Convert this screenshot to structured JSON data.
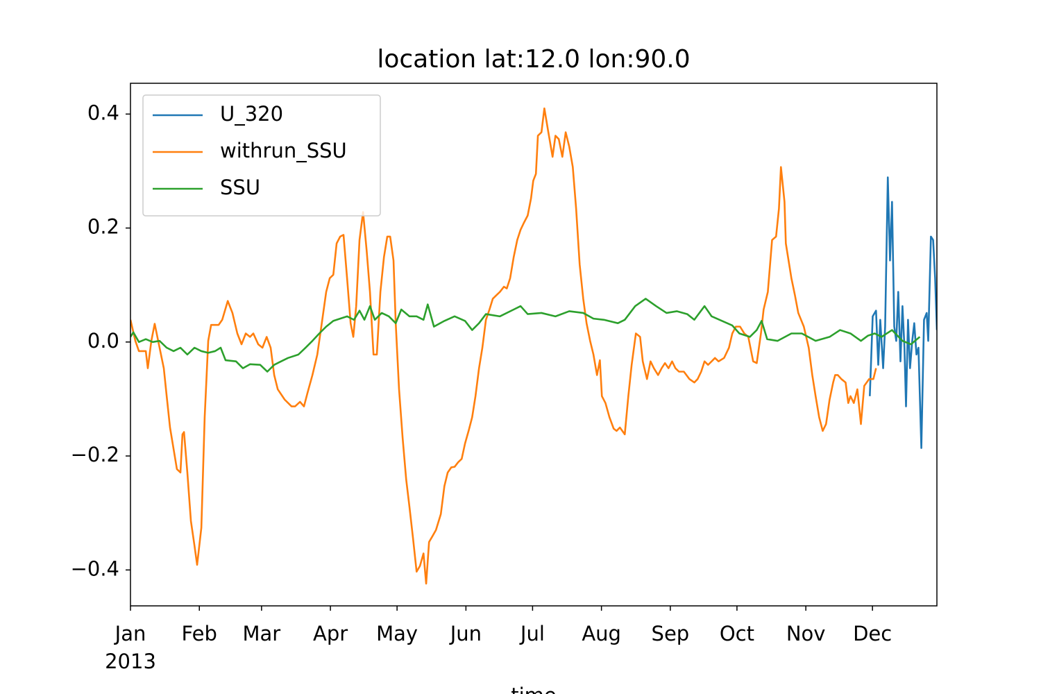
{
  "chart_data": {
    "type": "line",
    "title": "location lat:12.0 lon:90.0",
    "xlabel": "time",
    "year_label": "2013",
    "xlim": [
      0,
      363
    ],
    "xticks": [
      {
        "value": 0,
        "label": "Jan"
      },
      {
        "value": 31,
        "label": "Feb"
      },
      {
        "value": 59,
        "label": "Mar"
      },
      {
        "value": 90,
        "label": "Apr"
      },
      {
        "value": 120,
        "label": "May"
      },
      {
        "value": 151,
        "label": "Jun"
      },
      {
        "value": 181,
        "label": "Jul"
      },
      {
        "value": 212,
        "label": "Aug"
      },
      {
        "value": 243,
        "label": "Sep"
      },
      {
        "value": 273,
        "label": "Oct"
      },
      {
        "value": 304,
        "label": "Nov"
      },
      {
        "value": 334,
        "label": "Dec"
      }
    ],
    "ylim": [
      -0.463,
      0.454
    ],
    "yticks": [
      {
        "value": -0.4,
        "label": "−0.4"
      },
      {
        "value": -0.2,
        "label": "−0.2"
      },
      {
        "value": 0,
        "label": "0.0"
      },
      0.2,
      0.4
    ],
    "grid": false,
    "legend": "upper left",
    "series": [
      {
        "name": "U_320",
        "color": "#1f77b4",
        "x": [
          332.8,
          334.1,
          335.6,
          336.6,
          337.5,
          338.8,
          339.7,
          340.9,
          341.9,
          342.8,
          343.8,
          344.7,
          345.6,
          346.6,
          347.5,
          348.4,
          349.1,
          350,
          350.9,
          351.9,
          352.8,
          353.8,
          354.7,
          356,
          357.2,
          358.4,
          359.1,
          360.3,
          361.3,
          362.2,
          363
        ],
        "values": [
          -0.095,
          0.045,
          0.055,
          -0.04,
          0.039,
          -0.046,
          0.027,
          0.289,
          0.143,
          0.246,
          0.027,
          0.002,
          0.088,
          -0.034,
          0.063,
          -0.01,
          -0.113,
          0.039,
          -0.046,
          0.002,
          0.033,
          -0.022,
          -0.01,
          -0.186,
          0.039,
          0.051,
          0.002,
          0.185,
          0.179,
          0.112,
          0.021
        ]
      },
      {
        "name": "withrun_SSU",
        "color": "#ff7f0e",
        "x": [
          0,
          2.2,
          3.8,
          6.9,
          7.8,
          9.4,
          10.9,
          13.1,
          15,
          16.3,
          17.8,
          20.9,
          22.5,
          23.4,
          24.1,
          25.6,
          27.2,
          28.8,
          30,
          31.9,
          33.4,
          35,
          36.3,
          38.1,
          39.7,
          41.3,
          43.8,
          45.9,
          48.1,
          50,
          51.9,
          53.8,
          55.3,
          57.5,
          59.4,
          61.3,
          63.1,
          64.7,
          66.3,
          69.4,
          72.5,
          74.1,
          76.3,
          78.1,
          79.7,
          81.9,
          84.1,
          85.9,
          88.1,
          89.7,
          91.3,
          92.8,
          94.4,
          95.9,
          97.5,
          99.1,
          100.3,
          101.6,
          103.1,
          104.7,
          106.3,
          107.8,
          109.4,
          110.9,
          112.5,
          114.1,
          115.6,
          116.9,
          118.4,
          119.4,
          120.9,
          122.5,
          124.1,
          125.6,
          127.2,
          128.8,
          130.3,
          131.9,
          133.1,
          134.4,
          135.9,
          137.5,
          139.7,
          141.3,
          142.8,
          144.4,
          145.9,
          147.5,
          149.1,
          150.6,
          152.2,
          153.8,
          155.3,
          156.9,
          158.4,
          160,
          161.6,
          163.1,
          164.7,
          166.3,
          168.1,
          169.4,
          170.9,
          172.5,
          174.1,
          175.6,
          177.2,
          178.8,
          180.3,
          181.3,
          182.5,
          183.4,
          185,
          186.3,
          188.1,
          190,
          191.3,
          192.8,
          194.4,
          195.9,
          197.5,
          199.1,
          200.6,
          202.2,
          203.8,
          205.3,
          206.9,
          208.4,
          210,
          211.3,
          212.2,
          213.8,
          215.6,
          217.5,
          218.8,
          220.3,
          222.5,
          224.1,
          225.6,
          227.5,
          229.4,
          230.6,
          232.5,
          234.1,
          235.6,
          237.5,
          239.1,
          240.6,
          242.2,
          243.8,
          245.3,
          246.9,
          249.1,
          251.6,
          253.8,
          255.3,
          256.9,
          258.4,
          260,
          261.6,
          263.1,
          264.7,
          267.2,
          269.4,
          270.9,
          272.5,
          274.4,
          276.3,
          278.1,
          280.3,
          281.9,
          283.8,
          285,
          286.9,
          288.8,
          290.6,
          291.9,
          292.8,
          294.4,
          295,
          297.5,
          299.1,
          300.6,
          303.1,
          305.3,
          306.9,
          308.4,
          310,
          311.6,
          313.1,
          314.7,
          316.3,
          317.2,
          318.4,
          320,
          321.9,
          323.1,
          324.1,
          325.6,
          327.2,
          328.8,
          330.3,
          332.5,
          334.4,
          335.6
        ],
        "values": [
          0.039,
          0.002,
          -0.016,
          -0.016,
          -0.046,
          0.002,
          0.032,
          -0.01,
          -0.046,
          -0.095,
          -0.15,
          -0.223,
          -0.229,
          -0.162,
          -0.158,
          -0.229,
          -0.314,
          -0.357,
          -0.391,
          -0.326,
          -0.132,
          0.002,
          0.03,
          0.03,
          0.03,
          0.039,
          0.072,
          0.051,
          0.015,
          -0.004,
          0.015,
          0.009,
          0.015,
          -0.004,
          -0.01,
          0.009,
          -0.01,
          -0.058,
          -0.083,
          -0.101,
          -0.113,
          -0.113,
          -0.105,
          -0.113,
          -0.089,
          -0.058,
          -0.022,
          0.027,
          0.088,
          0.112,
          0.118,
          0.173,
          0.185,
          0.188,
          0.112,
          0.033,
          0.009,
          0.063,
          0.179,
          0.228,
          0.161,
          0.088,
          -0.022,
          -0.022,
          0.088,
          0.149,
          0.185,
          0.185,
          0.143,
          0.033,
          -0.083,
          -0.168,
          -0.241,
          -0.29,
          -0.345,
          -0.403,
          -0.393,
          -0.371,
          -0.424,
          -0.351,
          -0.341,
          -0.33,
          -0.302,
          -0.253,
          -0.229,
          -0.22,
          -0.219,
          -0.211,
          -0.205,
          -0.178,
          -0.156,
          -0.132,
          -0.095,
          -0.046,
          -0.01,
          0.039,
          0.057,
          0.076,
          0.082,
          0.088,
          0.097,
          0.094,
          0.112,
          0.149,
          0.179,
          0.197,
          0.21,
          0.222,
          0.252,
          0.283,
          0.295,
          0.362,
          0.368,
          0.41,
          0.368,
          0.325,
          0.362,
          0.356,
          0.325,
          0.368,
          0.343,
          0.307,
          0.234,
          0.136,
          0.076,
          0.033,
          0.002,
          -0.022,
          -0.058,
          -0.032,
          -0.095,
          -0.107,
          -0.132,
          -0.152,
          -0.156,
          -0.15,
          -0.162,
          -0.095,
          -0.04,
          0.015,
          0.009,
          -0.034,
          -0.065,
          -0.034,
          -0.046,
          -0.058,
          -0.046,
          -0.037,
          -0.046,
          -0.034,
          -0.046,
          -0.052,
          -0.052,
          -0.065,
          -0.071,
          -0.065,
          -0.052,
          -0.034,
          -0.04,
          -0.034,
          -0.028,
          -0.034,
          -0.028,
          -0.01,
          0.015,
          0.027,
          0.027,
          0.015,
          0.009,
          -0.034,
          -0.037,
          0.015,
          0.057,
          0.088,
          0.179,
          0.185,
          0.234,
          0.307,
          0.246,
          0.173,
          0.112,
          0.082,
          0.051,
          0.027,
          -0.01,
          -0.058,
          -0.095,
          -0.132,
          -0.156,
          -0.144,
          -0.101,
          -0.071,
          -0.058,
          -0.058,
          -0.065,
          -0.071,
          -0.107,
          -0.095,
          -0.107,
          -0.083,
          -0.144,
          -0.077,
          -0.065,
          -0.065,
          -0.046
        ]
      },
      {
        "name": "SSU",
        "color": "#2ca02c",
        "x": [
          0,
          1.3,
          3.8,
          6.9,
          10,
          13.1,
          16.3,
          19.4,
          22.5,
          25.6,
          28.8,
          31.9,
          35,
          38.1,
          40.6,
          42.8,
          47.5,
          50.6,
          53.8,
          58.4,
          61.6,
          64.7,
          67.8,
          70.9,
          75.6,
          78.8,
          81.9,
          85,
          88.1,
          91.3,
          94.4,
          97.5,
          100.6,
          103.1,
          105.3,
          107.8,
          110,
          113.1,
          116.3,
          119.4,
          121.9,
          125.6,
          128.8,
          131.9,
          133.8,
          136.6,
          141.3,
          145.9,
          150.6,
          153.8,
          156.9,
          160,
          166.3,
          172.5,
          175.6,
          178.8,
          185,
          191.3,
          197.5,
          203.8,
          208.4,
          213.1,
          219.4,
          222.5,
          227.2,
          231.9,
          236.6,
          241.3,
          246,
          250.6,
          253.8,
          258.4,
          261.6,
          266.3,
          270.9,
          274.1,
          278.8,
          281.9,
          284.1,
          286.6,
          291.3,
          297.5,
          302.2,
          308.4,
          314.7,
          319.4,
          324.1,
          328.8,
          331.9,
          335,
          338.1,
          342.8,
          347.5,
          351.3,
          355.3
        ],
        "values": [
          0.009,
          0.017,
          0,
          0.005,
          0,
          0.002,
          -0.01,
          -0.016,
          -0.01,
          -0.022,
          -0.01,
          -0.016,
          -0.019,
          -0.016,
          -0.01,
          -0.032,
          -0.034,
          -0.046,
          -0.039,
          -0.04,
          -0.052,
          -0.04,
          -0.034,
          -0.028,
          -0.022,
          -0.01,
          0.002,
          0.015,
          0.027,
          0.037,
          0.041,
          0.045,
          0.039,
          0.055,
          0.039,
          0.063,
          0.039,
          0.051,
          0.045,
          0.033,
          0.057,
          0.045,
          0.045,
          0.039,
          0.066,
          0.027,
          0.037,
          0.045,
          0.037,
          0.021,
          0.033,
          0.049,
          0.045,
          0.057,
          0.063,
          0.049,
          0.051,
          0.045,
          0.054,
          0.051,
          0.041,
          0.039,
          0.033,
          0.039,
          0.063,
          0.076,
          0.063,
          0.051,
          0.054,
          0.049,
          0.039,
          0.063,
          0.045,
          0.037,
          0.029,
          0.015,
          0.009,
          0.021,
          0.037,
          0.005,
          0.002,
          0.015,
          0.015,
          0.002,
          0.009,
          0.021,
          0.015,
          0.002,
          0.011,
          0.015,
          0.009,
          0.021,
          0.002,
          -0.004,
          0.009
        ]
      }
    ]
  }
}
